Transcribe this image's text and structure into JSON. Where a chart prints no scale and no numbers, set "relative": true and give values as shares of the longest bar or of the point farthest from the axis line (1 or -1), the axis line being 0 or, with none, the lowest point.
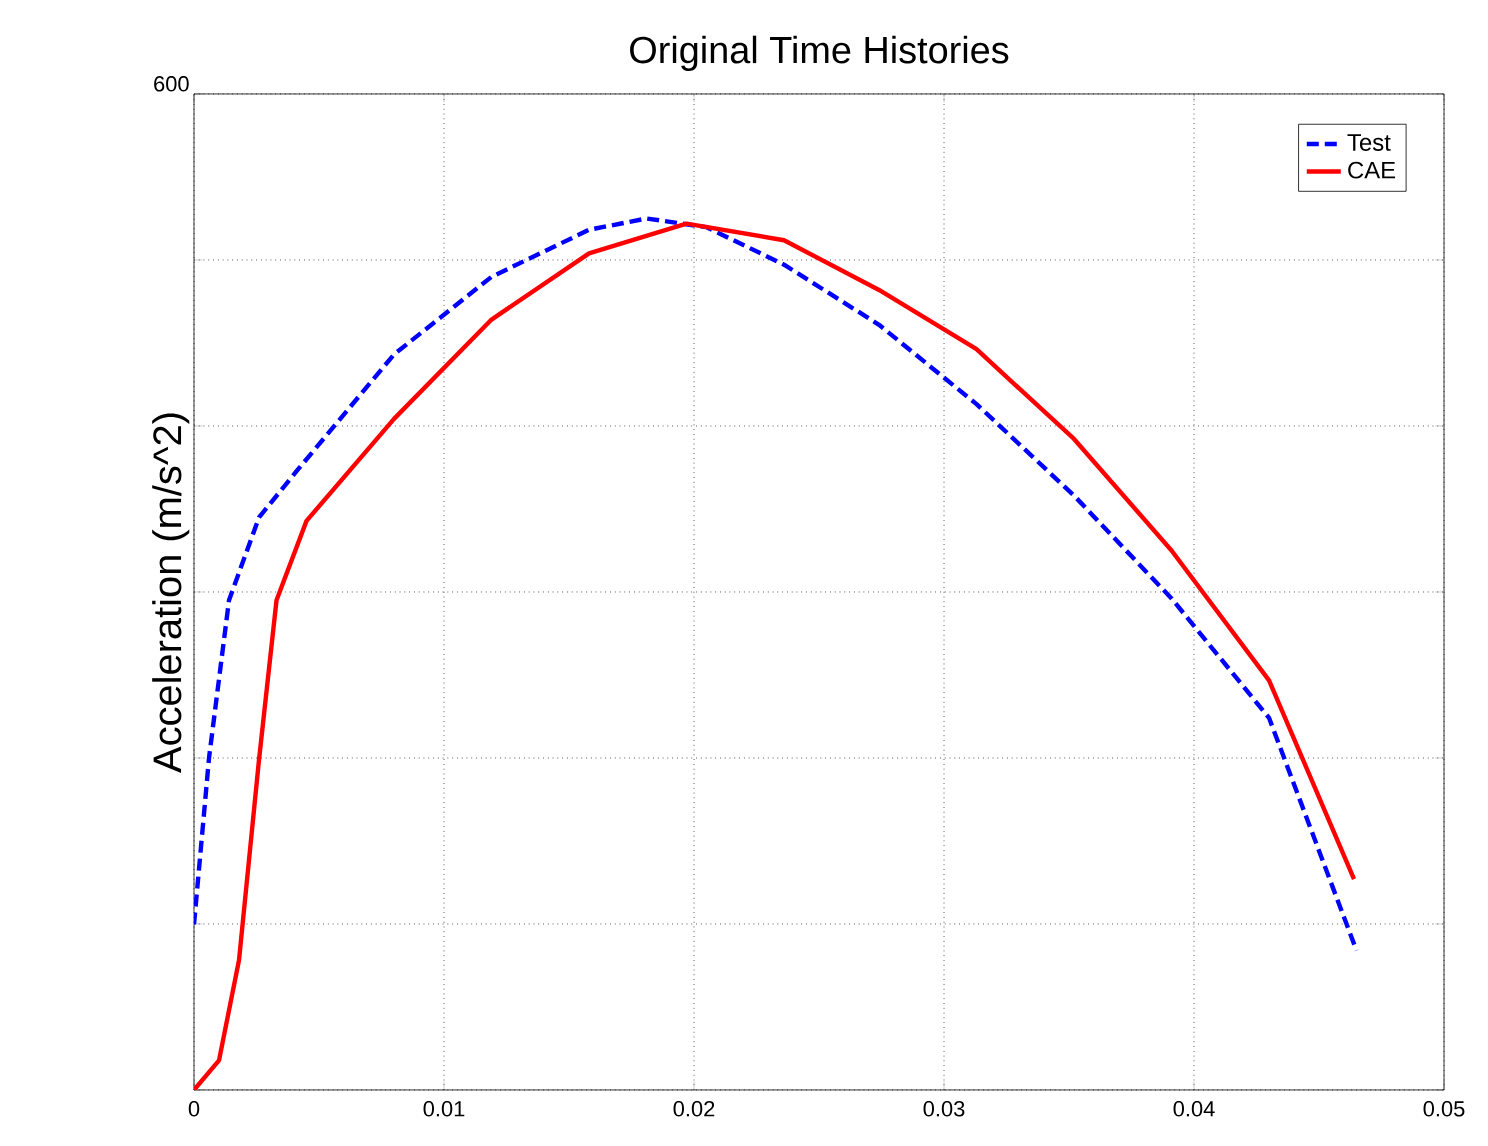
{
  "chart_data": {
    "type": "line",
    "title": "Original Time Histories",
    "ylabel": "Acceleration (m/s^2)",
    "relative": true,
    "annotations": [
      "600"
    ],
    "xlim": [
      0,
      0.05
    ],
    "xticks": [
      0,
      0.01,
      0.02,
      0.03,
      0.04,
      0.05
    ],
    "grid": true,
    "legend": "top right",
    "series": [
      {
        "name": "Test",
        "color": "#0000ff",
        "line_style": "dashed",
        "x": [
          0,
          0.0006,
          0.0014,
          0.0026,
          0.0041,
          0.008,
          0.0119,
          0.0158,
          0.0181,
          0.0205,
          0.0236,
          0.0274,
          0.0313,
          0.0352,
          0.0391,
          0.043,
          0.0465
        ],
        "values": [
          0.19,
          0.381,
          0.562,
          0.657,
          0.71,
          0.844,
          0.933,
          0.987,
          1,
          0.99,
          0.947,
          0.878,
          0.787,
          0.682,
          0.564,
          0.427,
          0.16
        ]
      },
      {
        "name": "CAE",
        "color": "#ff0000",
        "line_style": "solid",
        "x": [
          0,
          0.001,
          0.0018,
          0.0026,
          0.0033,
          0.0045,
          0.008,
          0.0119,
          0.0158,
          0.0197,
          0.0236,
          0.0274,
          0.0313,
          0.0352,
          0.0391,
          0.043,
          0.0464
        ],
        "values": [
          0,
          0.034,
          0.149,
          0.379,
          0.562,
          0.653,
          0.77,
          0.884,
          0.96,
          0.994,
          0.975,
          0.918,
          0.85,
          0.747,
          0.619,
          0.47,
          0.242
        ]
      }
    ]
  }
}
